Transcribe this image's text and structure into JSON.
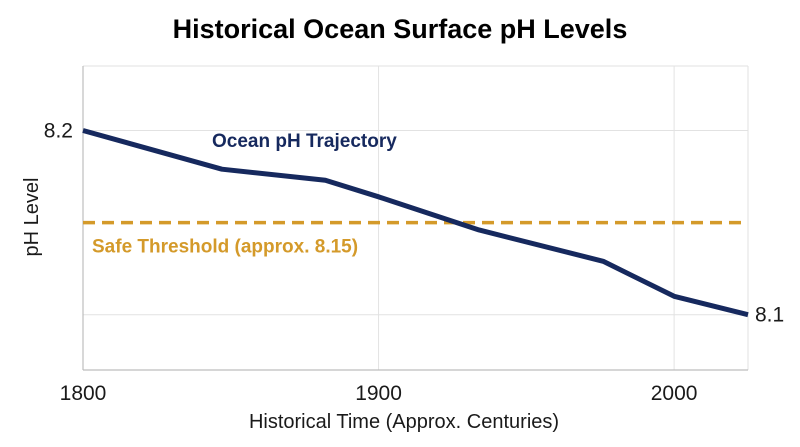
{
  "colors": {
    "trajectory": "#16295e",
    "threshold": "#d49a2a",
    "title": "#16295e",
    "grid": "#e2e2e2",
    "axis": "#bdbdbd"
  },
  "chart_data": {
    "type": "line",
    "title": "Historical Ocean Surface pH Levels",
    "xlabel": "Historical Time (Approx. Centuries)",
    "ylabel": "pH Level",
    "xlim": [
      1800,
      2025
    ],
    "ylim": [
      8.07,
      8.235
    ],
    "x_ticks": [
      1800,
      1900,
      2000
    ],
    "y_gridlines": [
      8.1,
      8.2
    ],
    "grid": true,
    "series": [
      {
        "name": "Ocean pH Trajectory",
        "x": [
          1800,
          1847,
          1882,
          1900,
          1934,
          1976,
          2000,
          2025
        ],
        "y": [
          8.2,
          8.179,
          8.173,
          8.164,
          8.146,
          8.129,
          8.11,
          8.1
        ]
      }
    ],
    "reference_lines": [
      {
        "name": "Safe Threshold (approx. 8.15)",
        "y": 8.15,
        "style": "dashed"
      }
    ],
    "data_labels": [
      {
        "text": "8.2",
        "x": 1800,
        "y": 8.2
      },
      {
        "text": "8.1",
        "x": 2025,
        "y": 8.1
      }
    ]
  }
}
